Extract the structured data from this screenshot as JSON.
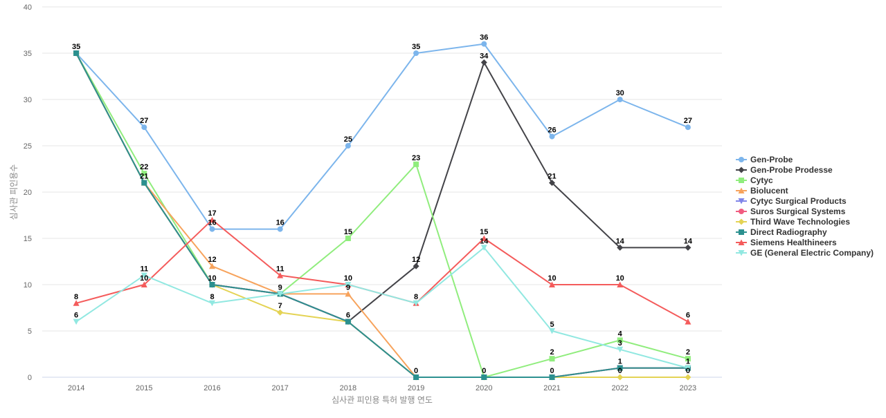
{
  "chart_data": {
    "type": "line",
    "title": "",
    "xlabel": "심사관 피인용 특허 발행 연도",
    "ylabel": "심사관 피인용수",
    "x": [
      "2014",
      "2015",
      "2016",
      "2017",
      "2018",
      "2019",
      "2020",
      "2021",
      "2022",
      "2023"
    ],
    "ylim": [
      0,
      40
    ],
    "yticks": [
      0,
      5,
      10,
      15,
      20,
      25,
      30,
      35,
      40
    ],
    "grid": true,
    "legend_position": "right",
    "series": [
      {
        "name": "Gen-Probe",
        "color": "#7cb5ec",
        "marker": "circle",
        "values": [
          35,
          27,
          16,
          16,
          25,
          35,
          36,
          26,
          30,
          27
        ]
      },
      {
        "name": "Gen-Probe Prodesse",
        "color": "#434348",
        "marker": "diamond",
        "values": [
          35,
          21,
          10,
          9,
          6,
          12,
          34,
          21,
          14,
          14
        ]
      },
      {
        "name": "Cytyc",
        "color": "#90ed7d",
        "marker": "square",
        "values": [
          35,
          22,
          10,
          9,
          15,
          23,
          0,
          2,
          4,
          2
        ]
      },
      {
        "name": "Biolucent",
        "color": "#f7a35c",
        "marker": "triangle",
        "values": [
          35,
          21,
          12,
          9,
          9,
          0,
          0,
          0,
          1,
          1
        ]
      },
      {
        "name": "Cytyc Surgical Products",
        "color": "#8085e9",
        "marker": "triangle-down",
        "values": [
          35,
          21,
          10,
          9,
          6,
          0,
          0,
          0,
          1,
          1
        ]
      },
      {
        "name": "Suros Surgical Systems",
        "color": "#f15c80",
        "marker": "circle",
        "values": [
          35,
          21,
          10,
          9,
          6,
          0,
          0,
          0,
          1,
          1
        ]
      },
      {
        "name": "Third Wave Technologies",
        "color": "#e4d354",
        "marker": "diamond",
        "values": [
          35,
          21,
          10,
          7,
          6,
          0,
          0,
          0,
          0,
          0
        ]
      },
      {
        "name": "Direct Radiography",
        "color": "#2b908f",
        "marker": "square",
        "values": [
          35,
          21,
          10,
          9,
          6,
          0,
          0,
          0,
          1,
          1
        ]
      },
      {
        "name": "Siemens Healthineers",
        "color": "#f45b5b",
        "marker": "triangle",
        "values": [
          8,
          10,
          17,
          11,
          10,
          8,
          15,
          10,
          10,
          6
        ]
      },
      {
        "name": "GE (General Electric Company)",
        "color": "#91e8e1",
        "marker": "triangle-down",
        "values": [
          6,
          11,
          8,
          9,
          10,
          8,
          14,
          5,
          3,
          1
        ]
      }
    ],
    "data_labels": [
      {
        "x": "2014",
        "value": "35"
      },
      {
        "x": "2014",
        "value": "8"
      },
      {
        "x": "2014",
        "value": "6"
      },
      {
        "x": "2015",
        "value": "27"
      },
      {
        "x": "2015",
        "value": "22"
      },
      {
        "x": "2015",
        "value": "21"
      },
      {
        "x": "2015",
        "value": "11"
      },
      {
        "x": "2015",
        "value": "10"
      },
      {
        "x": "2016",
        "value": "17"
      },
      {
        "x": "2016",
        "value": "16"
      },
      {
        "x": "2016",
        "value": "12"
      },
      {
        "x": "2016",
        "value": "10"
      },
      {
        "x": "2016",
        "value": "8"
      },
      {
        "x": "2017",
        "value": "16"
      },
      {
        "x": "2017",
        "value": "11"
      },
      {
        "x": "2017",
        "value": "9"
      },
      {
        "x": "2017",
        "value": "7"
      },
      {
        "x": "2018",
        "value": "25"
      },
      {
        "x": "2018",
        "value": "15"
      },
      {
        "x": "2018",
        "value": "10"
      },
      {
        "x": "2018",
        "value": "9"
      },
      {
        "x": "2018",
        "value": "6"
      },
      {
        "x": "2019",
        "value": "35"
      },
      {
        "x": "2019",
        "value": "23"
      },
      {
        "x": "2019",
        "value": "12"
      },
      {
        "x": "2019",
        "value": "8"
      },
      {
        "x": "2019",
        "value": "0"
      },
      {
        "x": "2020",
        "value": "36"
      },
      {
        "x": "2020",
        "value": "34"
      },
      {
        "x": "2020",
        "value": "15"
      },
      {
        "x": "2020",
        "value": "14"
      },
      {
        "x": "2020",
        "value": "0"
      },
      {
        "x": "2021",
        "value": "26"
      },
      {
        "x": "2021",
        "value": "21"
      },
      {
        "x": "2021",
        "value": "10"
      },
      {
        "x": "2021",
        "value": "5"
      },
      {
        "x": "2021",
        "value": "2"
      },
      {
        "x": "2021",
        "value": "0"
      },
      {
        "x": "2022",
        "value": "30"
      },
      {
        "x": "2022",
        "value": "14"
      },
      {
        "x": "2022",
        "value": "10"
      },
      {
        "x": "2022",
        "value": "4"
      },
      {
        "x": "2022",
        "value": "3"
      },
      {
        "x": "2022",
        "value": "1"
      },
      {
        "x": "2022",
        "value": "0"
      },
      {
        "x": "2023",
        "value": "27"
      },
      {
        "x": "2023",
        "value": "14"
      },
      {
        "x": "2023",
        "value": "6"
      },
      {
        "x": "2023",
        "value": "2"
      },
      {
        "x": "2023",
        "value": "1"
      },
      {
        "x": "2023",
        "value": "0"
      }
    ]
  }
}
